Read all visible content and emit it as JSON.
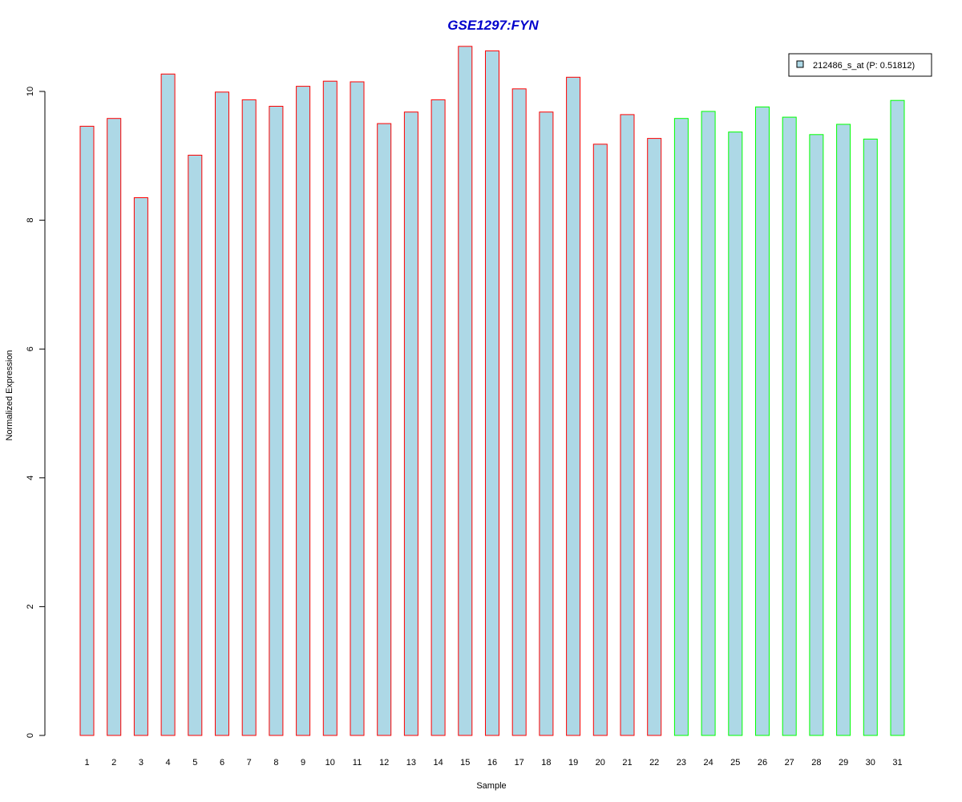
{
  "chart_data": {
    "type": "bar",
    "title": "GSE1297:FYN",
    "xlabel": "Sample",
    "ylabel": "Normalized Expression",
    "ylim": [
      0,
      10.7
    ],
    "yticks": [
      0,
      2,
      4,
      6,
      8,
      10
    ],
    "categories": [
      "1",
      "2",
      "3",
      "4",
      "5",
      "6",
      "7",
      "8",
      "9",
      "10",
      "11",
      "12",
      "13",
      "14",
      "15",
      "16",
      "17",
      "18",
      "19",
      "20",
      "21",
      "22",
      "23",
      "24",
      "25",
      "26",
      "27",
      "28",
      "29",
      "30",
      "31"
    ],
    "series": [
      {
        "name": "212486_s_at (P: 0.51812)",
        "values": [
          9.46,
          9.58,
          8.35,
          10.27,
          9.01,
          9.99,
          9.87,
          9.77,
          10.08,
          10.16,
          10.15,
          9.5,
          9.68,
          9.87,
          10.7,
          10.63,
          10.04,
          9.68,
          10.22,
          9.18,
          9.64,
          9.27,
          9.58,
          9.69,
          9.37,
          9.76,
          9.6,
          9.33,
          9.49,
          9.26,
          9.86
        ]
      }
    ],
    "groups": [
      {
        "range": [
          1,
          22
        ],
        "border_color": "#ff0000"
      },
      {
        "range": [
          23,
          31
        ],
        "border_color": "#00ff00"
      }
    ],
    "bar_fill": "#add8e6",
    "title_color": "#0000cc",
    "grid": false,
    "legend_position": "top-right"
  }
}
